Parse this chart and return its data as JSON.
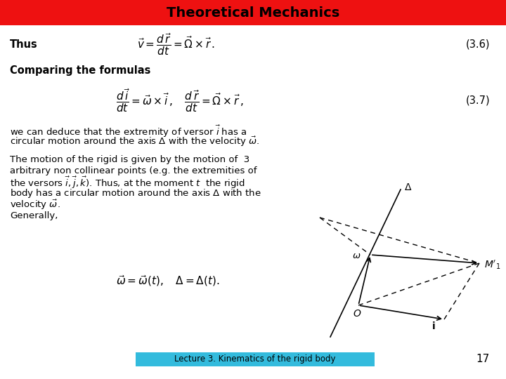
{
  "title": "Theoretical Mechanics",
  "title_bg_color": "#ee1111",
  "title_text_color": "#000000",
  "slide_bg_color": "#ffffff",
  "footer_text": "Lecture 3. Kinematics of the rigid body",
  "footer_bg_color": "#33bbdd",
  "footer_text_color": "#000000",
  "page_number": "17",
  "eq36_label": "(3.6)",
  "eq37_label": "(3.7)"
}
